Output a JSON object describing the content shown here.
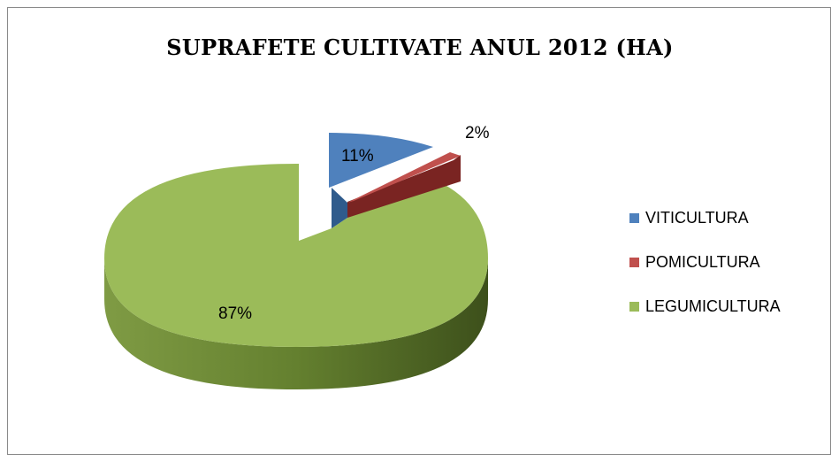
{
  "chart_data": {
    "type": "pie",
    "title": "SUPRAFETE CULTIVATE ANUL 2012 (HA)",
    "categories": [
      "VITICULTURA",
      "POMICULTURA",
      "LEGUMICULTURA"
    ],
    "values": [
      11,
      2,
      87
    ],
    "data_labels": [
      "11%",
      "2%",
      "87%"
    ],
    "colors": [
      "#4F81BD",
      "#C0504D",
      "#9BBB59"
    ],
    "style": "3d-exploded",
    "legend": "right"
  }
}
